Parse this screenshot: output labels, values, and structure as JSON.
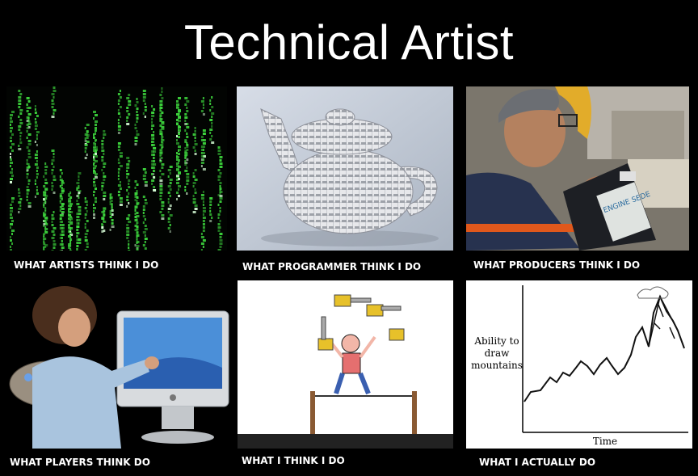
{
  "title": "Technical Artist",
  "captions": {
    "artists": "WHAT ARTISTS THINK I DO",
    "programmer": "WHAT PROGRAMMER THINK I DO",
    "producers": "WHAT PRODUCERS THINK I DO",
    "players": "WHAT PLAYERS THINK DO",
    "me": "WHAT I THINK I DO",
    "actual": "WHAT I ACTUALLY DO"
  },
  "oil_label": "ENGINE SEDE",
  "sketch": {
    "ylabel_lines": [
      "Ability to",
      "draw",
      "mountains"
    ],
    "xlabel": "Time"
  },
  "colors": {
    "background": "#000000",
    "text": "#ffffff",
    "matrix_green": "#3cd23c"
  }
}
